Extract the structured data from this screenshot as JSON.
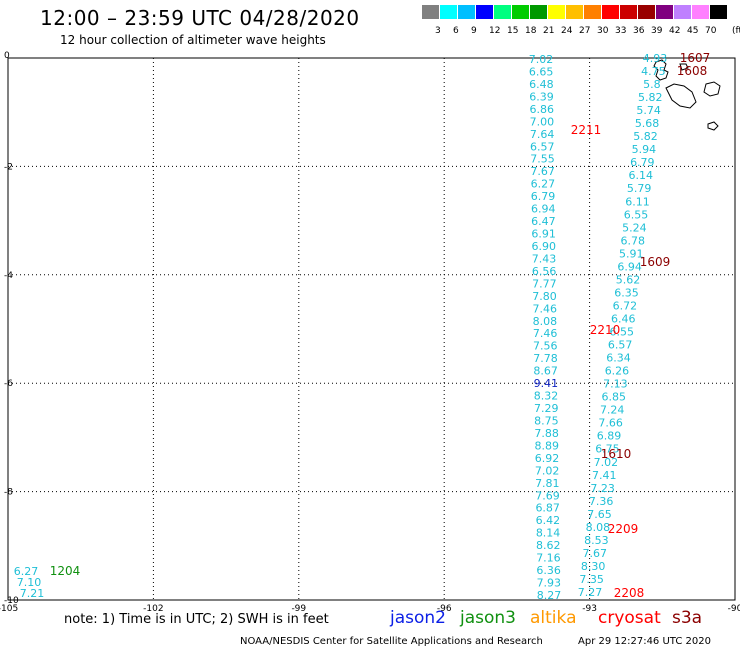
{
  "header": {
    "title": "12:00 – 23:59 UTC 04/28/2020",
    "subtitle": "12 hour collection of altimeter wave heights"
  },
  "colorbar": {
    "colors": [
      "#808080",
      "#00ffff",
      "#00bfff",
      "#0000ff",
      "#00ff80",
      "#00cc00",
      "#009900",
      "#ffff00",
      "#ffbf00",
      "#ff8000",
      "#ff0000",
      "#cc0000",
      "#990000",
      "#800080",
      "#bf80ff",
      "#ff80ff",
      "#000000"
    ],
    "labels": [
      "3",
      "6",
      "9",
      "12",
      "15",
      "18",
      "21",
      "24",
      "27",
      "30",
      "33",
      "36",
      "39",
      "42",
      "45",
      "70"
    ],
    "unit": "(ft)"
  },
  "axes": {
    "x_ticks": [
      "-105",
      "-102",
      "-99",
      "-96",
      "-93",
      "-90"
    ],
    "y_ticks": [
      "0",
      "-2",
      "-4",
      "-6",
      "-8",
      "-10"
    ]
  },
  "note": "note: 1) Time is in UTC; 2) SWH is in feet",
  "satellites": [
    {
      "name": "jason2",
      "color": "#0b1fe6"
    },
    {
      "name": "jason3",
      "color": "#109010"
    },
    {
      "name": "altika",
      "color": "#ff9900"
    },
    {
      "name": "cryosat",
      "color": "#ff0000"
    },
    {
      "name": "s3a",
      "color": "#8b0000"
    }
  ],
  "footer": {
    "credit": "NOAA/NESDIS Center for Satellite Applications and Research",
    "timestamp": "Apr 29 12:27:46 UTC 2020"
  },
  "tracks": [
    {
      "name": "track-west",
      "color": "#1fbfd6",
      "values": [
        "7.02",
        "6.65",
        "6.48",
        "6.39",
        "6.86",
        "7.00",
        "7.64",
        "6.57",
        "7.55",
        "7.67",
        "6.27",
        "6.79",
        "6.94",
        "6.47",
        "6.91",
        "6.90",
        "7.43",
        "6.56",
        "7.77",
        "7.80",
        "7.46",
        "8.08",
        "7.46",
        "7.56",
        "7.78",
        "8.67",
        "9.41",
        "8.32",
        "7.29",
        "8.75",
        "7.88",
        "8.89",
        "6.92",
        "7.02",
        "7.81",
        "7.69",
        "6.87",
        "6.42",
        "8.14",
        "8.62",
        "7.16",
        "6.36",
        "7.93",
        "8.27"
      ]
    },
    {
      "name": "track-east",
      "color": "#1fbfd6",
      "values": [
        "4.93",
        "4.75",
        "5.8",
        "5.82",
        "5.74",
        "5.68",
        "5.82",
        "5.94",
        "6.79",
        "6.14",
        "5.79",
        "6.11",
        "6.55",
        "5.24",
        "6.78",
        "5.91",
        "6.94",
        "5.62",
        "6.35",
        "6.72",
        "6.46",
        "6.55",
        "6.57",
        "6.34",
        "6.26",
        "7.13",
        "6.85",
        "7.24",
        "7.66",
        "6.89",
        "6.75",
        "7.02",
        "7.41",
        "7.23",
        "7.36",
        "7.65",
        "8.08",
        "8.53",
        "7.67",
        "8.30",
        "7.35",
        "7.27"
      ]
    },
    {
      "name": "track-southwest",
      "color": "#1fbfd6",
      "values": [
        "6.27",
        "7.10",
        "7.21"
      ]
    }
  ],
  "time_labels": [
    {
      "text": "1607",
      "color": "#8b0000"
    },
    {
      "text": "1608",
      "color": "#8b0000"
    },
    {
      "text": "2211",
      "color": "#ff0000"
    },
    {
      "text": "1609",
      "color": "#8b0000"
    },
    {
      "text": "2210",
      "color": "#ff0000"
    },
    {
      "text": "1610",
      "color": "#8b0000"
    },
    {
      "text": "2209",
      "color": "#ff0000"
    },
    {
      "text": "2208",
      "color": "#ff0000"
    },
    {
      "text": "1204",
      "color": "#109010"
    }
  ]
}
